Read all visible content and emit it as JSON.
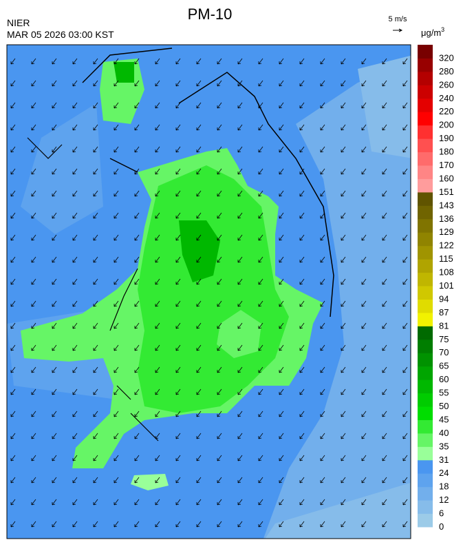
{
  "header": {
    "title": "PM-10",
    "agency": "NIER",
    "timestamp": "MAR 05 2026 03:00 KST",
    "wind_reference": "5 m/s",
    "unit": {
      "base": "μg/m",
      "sup": "3"
    }
  },
  "colorbar": {
    "levels": [
      0,
      6,
      12,
      18,
      24,
      31,
      35,
      40,
      45,
      50,
      55,
      60,
      65,
      70,
      75,
      81,
      87,
      94,
      101,
      108,
      115,
      122,
      129,
      136,
      143,
      151,
      160,
      170,
      180,
      190,
      200,
      220,
      240,
      260,
      280,
      320
    ],
    "colors": [
      "#9ccbe8",
      "#86bcea",
      "#72afec",
      "#5ea3ee",
      "#4a96f0",
      "#99ff99",
      "#66f566",
      "#33ea33",
      "#00dd00",
      "#00cc00",
      "#00b800",
      "#00a500",
      "#009200",
      "#007e00",
      "#006a00",
      "#f2f200",
      "#e0dc00",
      "#d0c800",
      "#c0b600",
      "#b0a400",
      "#a09400",
      "#908400",
      "#807400",
      "#706400",
      "#605400",
      "#ff9c9c",
      "#ff8585",
      "#ff6b6b",
      "#ff5050",
      "#ff3030",
      "#ff0000",
      "#e40000",
      "#cc0000",
      "#b40000",
      "#980000",
      "#780000"
    ]
  }
}
